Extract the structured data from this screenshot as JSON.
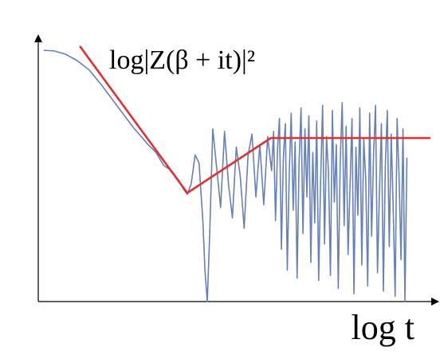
{
  "chart_data": {
    "type": "line",
    "annotation": "log|Z(β + it)|²",
    "x_label": "log t",
    "xlim": [
      0,
      10
    ],
    "ylim": [
      0,
      10
    ],
    "series": [
      {
        "color": "#6680b8",
        "x": [
          0.14,
          0.4,
          0.7,
          1.0,
          1.3,
          1.6,
          2.0,
          2.4,
          2.8,
          3.0,
          3.2,
          3.4,
          3.6,
          3.7,
          3.8,
          3.9,
          4.0,
          4.1,
          4.2,
          4.25,
          4.31,
          4.37,
          4.45,
          4.55,
          4.65,
          4.75,
          4.85,
          4.95,
          5.05,
          5.15,
          5.25,
          5.35,
          5.45,
          5.55,
          5.65,
          5.75,
          5.85,
          5.95,
          6.0,
          6.05,
          6.1,
          6.15,
          6.2,
          6.25,
          6.3,
          6.35,
          6.4,
          6.45,
          6.5,
          6.55,
          6.6,
          6.65,
          6.7,
          6.75,
          6.8,
          6.85,
          6.9,
          6.95,
          7.0,
          7.05,
          7.1,
          7.15,
          7.2,
          7.25,
          7.3,
          7.35,
          7.4,
          7.45,
          7.5,
          7.55,
          7.6,
          7.65,
          7.7,
          7.75,
          7.8,
          7.85,
          7.9,
          7.95,
          8.0,
          8.05,
          8.1,
          8.15,
          8.2,
          8.25,
          8.3,
          8.35,
          8.4,
          8.45,
          8.5,
          8.55,
          8.6,
          8.65,
          8.7,
          8.75,
          8.8,
          8.85,
          8.9,
          8.95,
          9.0,
          9.05,
          9.1,
          9.15,
          9.2,
          9.25,
          9.3,
          9.35,
          9.4
        ],
        "values": [
          9.6,
          9.58,
          9.45,
          9.2,
          8.85,
          8.3,
          7.5,
          6.7,
          6.0,
          5.7,
          5.2,
          5.0,
          4.6,
          4.3,
          4.1,
          4.5,
          5.6,
          5.3,
          3.0,
          1.2,
          0,
          2.5,
          6.6,
          5.1,
          3.6,
          6.5,
          4.5,
          3.2,
          5.9,
          4.8,
          2.8,
          5.6,
          6.4,
          4.0,
          6.0,
          3.7,
          6.3,
          5.0,
          6.5,
          3.1,
          5.8,
          7.0,
          2.0,
          5.5,
          6.8,
          1.2,
          4.9,
          7.2,
          3.5,
          6.1,
          0.9,
          5.3,
          7.4,
          2.6,
          6.6,
          4.0,
          7.1,
          1.5,
          5.7,
          3.0,
          6.9,
          0.8,
          4.6,
          7.5,
          2.2,
          6.3,
          5.0,
          1.0,
          7.3,
          3.8,
          6.0,
          0.5,
          5.4,
          7.6,
          2.9,
          6.7,
          1.8,
          4.4,
          7.0,
          0.3,
          5.9,
          3.3,
          7.4,
          1.4,
          6.2,
          4.7,
          0.6,
          7.2,
          2.5,
          5.6,
          7.5,
          1.1,
          4.2,
          6.8,
          0.4,
          5.2,
          7.3,
          2.1,
          6.4,
          3.6,
          0.2,
          7.0,
          4.8,
          1.6,
          6.6,
          0,
          5.5
        ]
      },
      {
        "color": "#e03030",
        "x": [
          1.06,
          3.8,
          5.93,
          10
        ],
        "values": [
          9.76,
          4.15,
          6.25,
          6.25
        ]
      }
    ]
  }
}
